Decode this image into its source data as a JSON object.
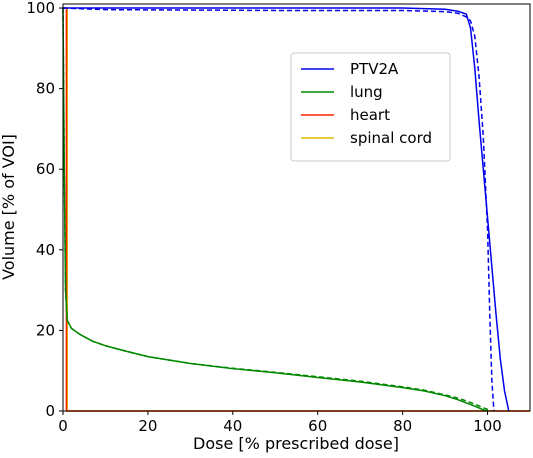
{
  "chart_data": {
    "type": "line",
    "xlabel": "Dose [% prescribed dose]",
    "ylabel": "Volume [% of VOI]",
    "xlim": [
      0,
      110
    ],
    "ylim": [
      0,
      101
    ],
    "xticks": [
      0,
      20,
      40,
      60,
      80,
      100
    ],
    "yticks": [
      0,
      20,
      40,
      60,
      80,
      100
    ],
    "grid": false,
    "legend_position": "upper-right",
    "series": [
      {
        "name": "PTV2A",
        "color": "#0000ee",
        "style": "solid",
        "x": [
          0,
          10,
          50,
          80,
          90,
          93,
          95,
          96,
          97,
          98,
          99,
          100,
          101,
          102,
          103,
          104,
          105
        ],
        "y": [
          100,
          100,
          100,
          100,
          99.7,
          99.2,
          98.5,
          95,
          85,
          72,
          60,
          48,
          36,
          24,
          13,
          5,
          0
        ]
      },
      {
        "name": "PTV2A",
        "color": "#0000ee",
        "style": "dashed",
        "x": [
          0,
          10,
          50,
          80,
          90,
          93,
          95,
          96,
          97,
          98,
          99,
          100,
          100.5,
          101,
          101.5
        ],
        "y": [
          100,
          99.6,
          99.4,
          99.4,
          99.1,
          98.7,
          97.8,
          96.8,
          93,
          83,
          68,
          45,
          25,
          8,
          0
        ]
      },
      {
        "name": "lung",
        "color": "#008800",
        "style": "solid",
        "x": [
          0,
          0.3,
          0.6,
          1,
          2,
          4,
          7,
          10,
          15,
          20,
          30,
          40,
          50,
          60,
          70,
          80,
          85,
          90,
          93,
          95,
          97,
          99,
          100
        ],
        "y": [
          100,
          60,
          30,
          22.5,
          20.5,
          19,
          17.3,
          16.2,
          14.8,
          13.5,
          11.8,
          10.5,
          9.5,
          8.3,
          7.2,
          5.8,
          5,
          3.8,
          2.8,
          2,
          1.2,
          0.3,
          0
        ]
      },
      {
        "name": "lung",
        "color": "#008800",
        "style": "dashed",
        "x": [
          0,
          0.3,
          0.6,
          1,
          2,
          4,
          7,
          10,
          15,
          20,
          30,
          40,
          50,
          60,
          70,
          80,
          85,
          90,
          93,
          95,
          97,
          99,
          101
        ],
        "y": [
          100,
          60,
          30,
          22.5,
          20.5,
          19,
          17.3,
          16.2,
          14.8,
          13.5,
          11.8,
          10.6,
          9.6,
          8.5,
          7.4,
          6,
          5.2,
          4,
          3.2,
          2.5,
          1.7,
          0.8,
          0
        ]
      },
      {
        "name": "heart",
        "color": "#ff2200",
        "style": "solid",
        "x": [
          0,
          0.8,
          0.8,
          110
        ],
        "y": [
          100,
          100,
          0,
          0
        ]
      },
      {
        "name": "spinal cord",
        "color": "#ddbb00",
        "style": "solid",
        "x": [
          0,
          1,
          1,
          110
        ],
        "y": [
          100,
          100,
          0,
          0
        ]
      }
    ],
    "legend": [
      {
        "name": "PTV2A",
        "color": "#0000ee"
      },
      {
        "name": "lung",
        "color": "#008800"
      },
      {
        "name": "heart",
        "color": "#ff2200"
      },
      {
        "name": "spinal cord",
        "color": "#ddbb00"
      }
    ]
  }
}
